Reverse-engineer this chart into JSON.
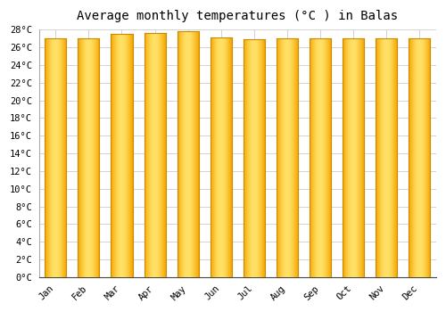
{
  "title": "Average monthly temperatures (°C ) in Balas",
  "months": [
    "Jan",
    "Feb",
    "Mar",
    "Apr",
    "May",
    "Jun",
    "Jul",
    "Aug",
    "Sep",
    "Oct",
    "Nov",
    "Dec"
  ],
  "values": [
    27.0,
    27.0,
    27.5,
    27.6,
    27.8,
    27.1,
    26.9,
    27.0,
    27.0,
    27.0,
    27.0,
    27.0
  ],
  "ylim": [
    0,
    28
  ],
  "yticks": [
    0,
    2,
    4,
    6,
    8,
    10,
    12,
    14,
    16,
    18,
    20,
    22,
    24,
    26,
    28
  ],
  "bar_color_center": "#FFD966",
  "bar_color_edge": "#F5A800",
  "bar_edge_color": "#CC8800",
  "background_color": "#FFFFFF",
  "plot_bg_color": "#FFFFFF",
  "grid_color": "#CCCCCC",
  "title_fontsize": 10,
  "tick_fontsize": 7.5,
  "title_font": "monospace",
  "tick_font": "monospace",
  "bar_width": 0.65
}
